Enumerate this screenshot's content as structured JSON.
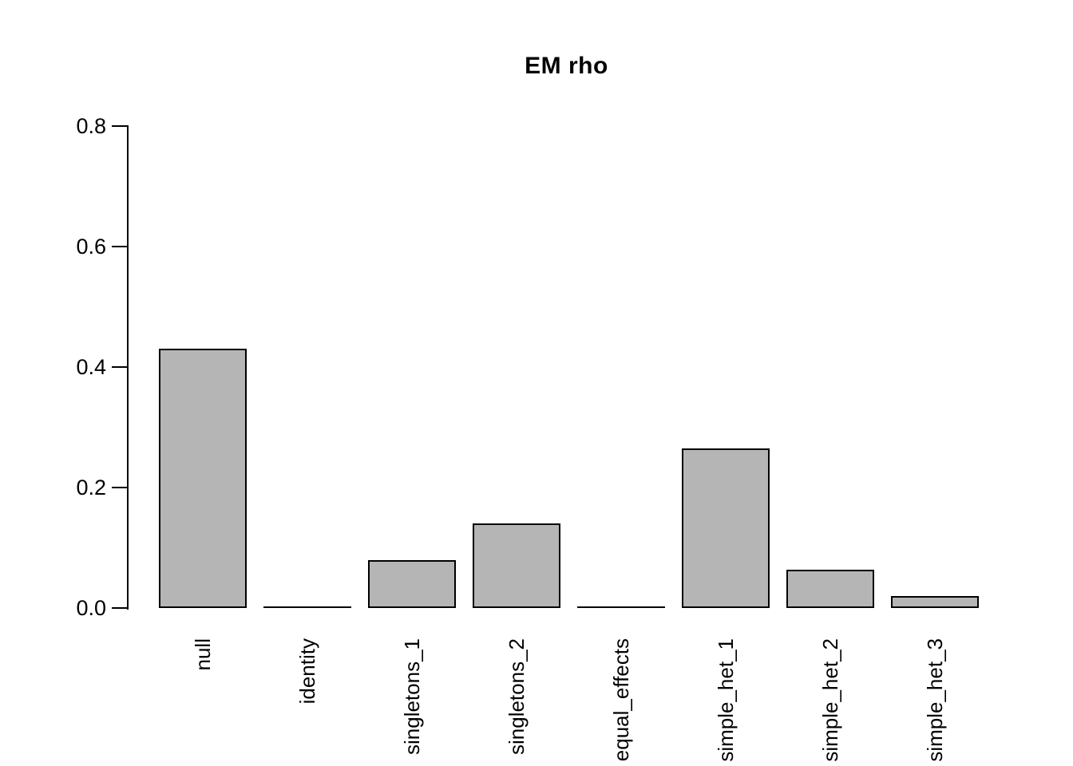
{
  "chart_data": {
    "type": "bar",
    "title": "EM rho",
    "categories": [
      "null",
      "identity",
      "singletons_1",
      "singletons_2",
      "equal_effects",
      "simple_het_1",
      "simple_het_2",
      "simple_het_3"
    ],
    "values": [
      0.43,
      0,
      0.08,
      0.14,
      0,
      0.265,
      0.063,
      0.02
    ],
    "ylim": [
      0,
      0.8
    ],
    "yticks": [
      0.0,
      0.2,
      0.4,
      0.6,
      0.8
    ],
    "ytick_labels": [
      "0.0",
      "0.2",
      "0.4",
      "0.6",
      "0.8"
    ],
    "xlabel": "",
    "ylabel": "",
    "grid": false,
    "legend": null,
    "bar_fill_color": "#b5b5b5",
    "bar_border_color": "#000000",
    "axis_color": "#000000",
    "background_color": "#ffffff"
  }
}
